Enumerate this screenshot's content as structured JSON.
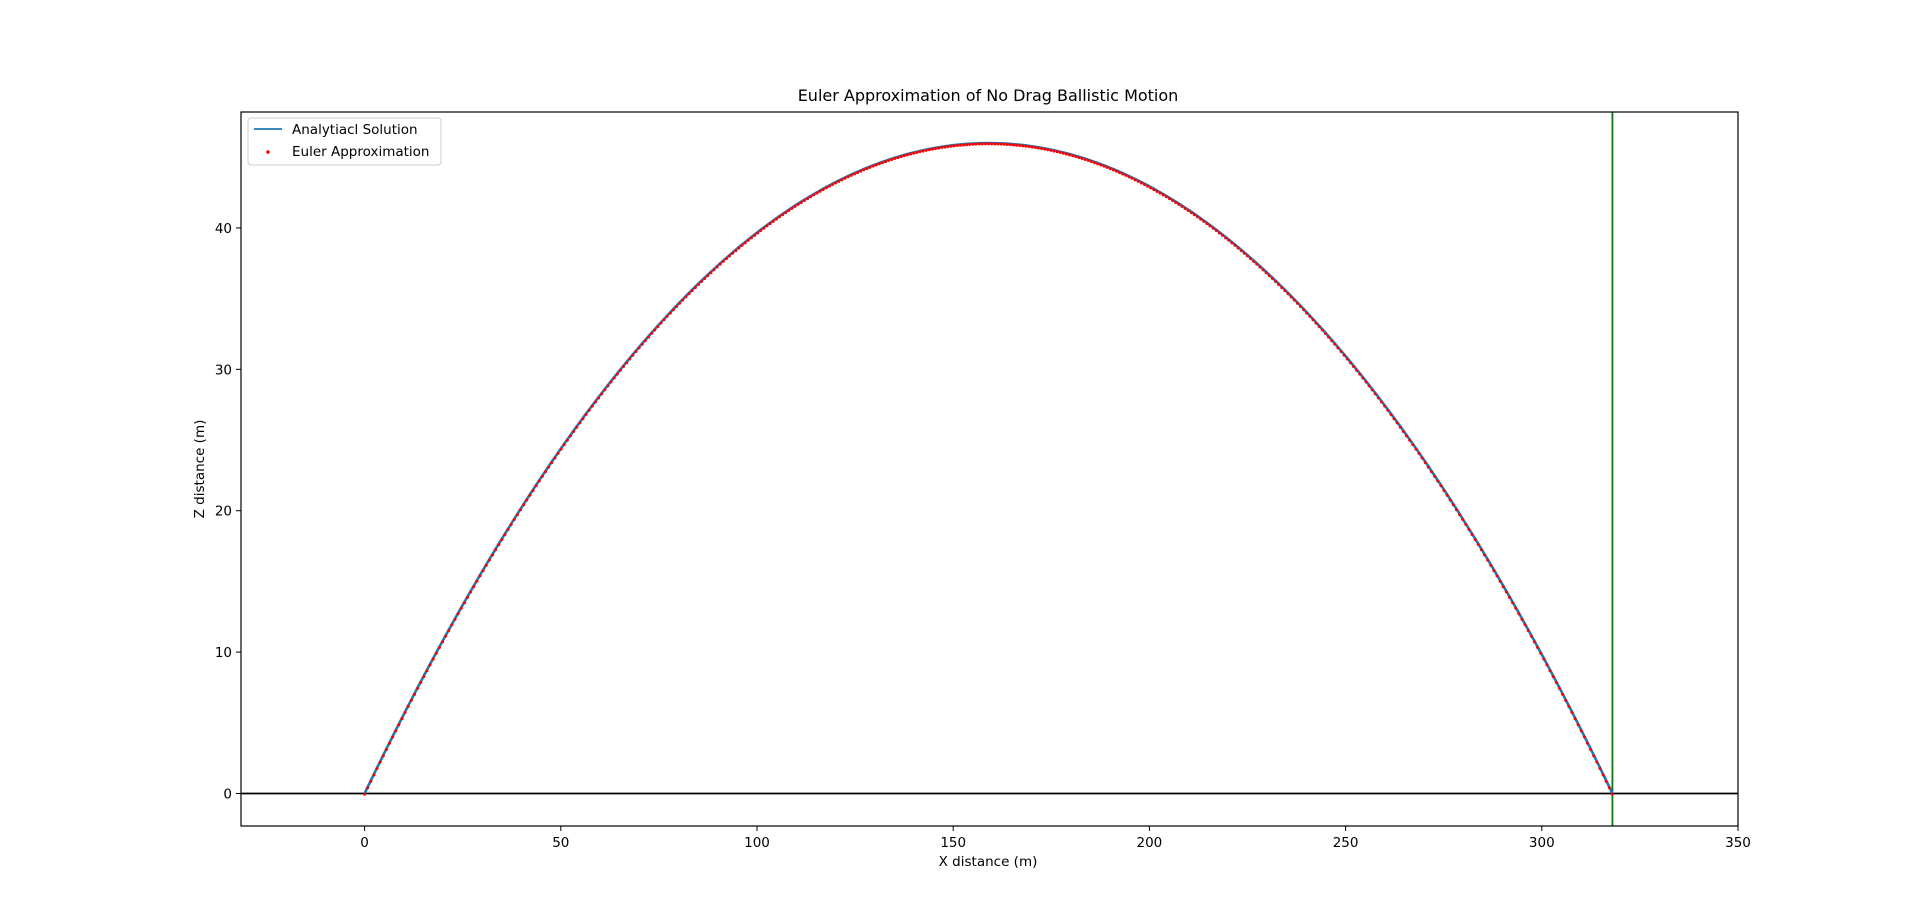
{
  "chart_data": {
    "type": "line",
    "title": "Euler Approximation of No Drag Ballistic Motion",
    "xlabel": "X distance (m)",
    "ylabel": "Z distance (m)",
    "xlim": [
      -31.5,
      350
    ],
    "ylim": [
      -2.3,
      48.2
    ],
    "xticks": [
      0,
      50,
      100,
      150,
      200,
      250,
      300,
      350
    ],
    "yticks": [
      0,
      10,
      20,
      30,
      40
    ],
    "grid": false,
    "legend_position": "upper-left",
    "trajectory": {
      "launch_x": 0,
      "landing_x": 318,
      "apex_x": 159,
      "apex_z": 46
    },
    "series": [
      {
        "name": "Analytiacl Solution",
        "style": "line",
        "color": "#1f77b4"
      },
      {
        "name": "Euler Approximation",
        "style": "scatter",
        "color": "#ff0000",
        "point_count": 400
      }
    ],
    "reference_lines": {
      "horizontal_z": 0,
      "horizontal_color": "#000000",
      "vertical_x": 318,
      "vertical_color": "#008000"
    }
  }
}
